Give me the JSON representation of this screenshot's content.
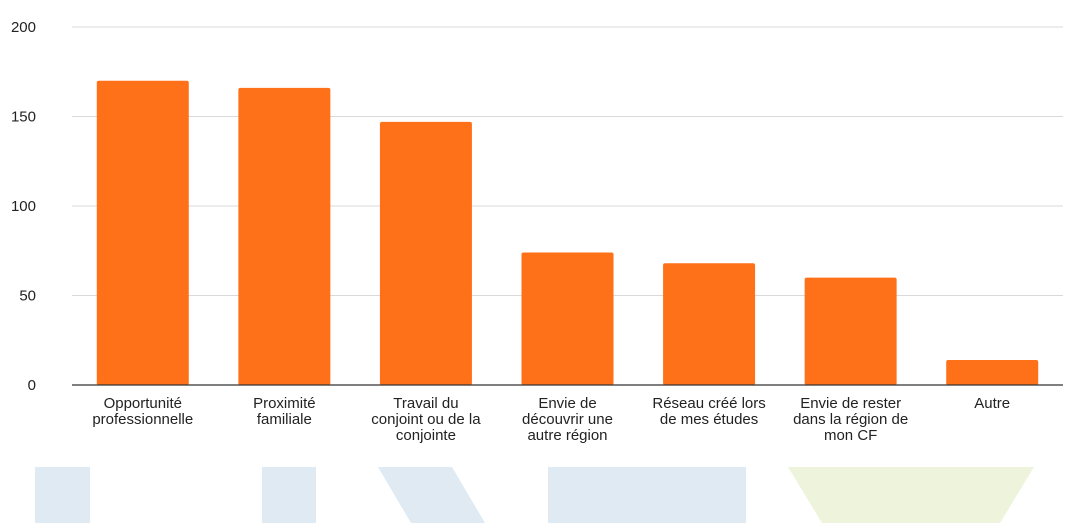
{
  "chart_data": {
    "type": "bar",
    "categories": [
      [
        "Opportunité",
        "professionnelle"
      ],
      [
        "Proximité",
        "familiale"
      ],
      [
        "Travail du",
        "conjoint ou de la",
        "conjointe"
      ],
      [
        "Envie de",
        "découvrir une",
        "autre région"
      ],
      [
        "Réseau créé lors",
        "de mes études"
      ],
      [
        "Envie de rester",
        "dans la région de",
        "mon CF"
      ],
      [
        "Autre"
      ]
    ],
    "values": [
      170,
      166,
      147,
      74,
      68,
      60,
      14
    ],
    "ylim": [
      0,
      200
    ],
    "yticks": [
      0,
      50,
      100,
      150,
      200
    ],
    "grid": true,
    "legend": "none",
    "colors": {
      "bar": "#ff7119",
      "grid": "#d9d9d9",
      "axis": "#333333",
      "watermark_blue": "#dfeaf2",
      "watermark_green": "#eef4dc"
    }
  }
}
